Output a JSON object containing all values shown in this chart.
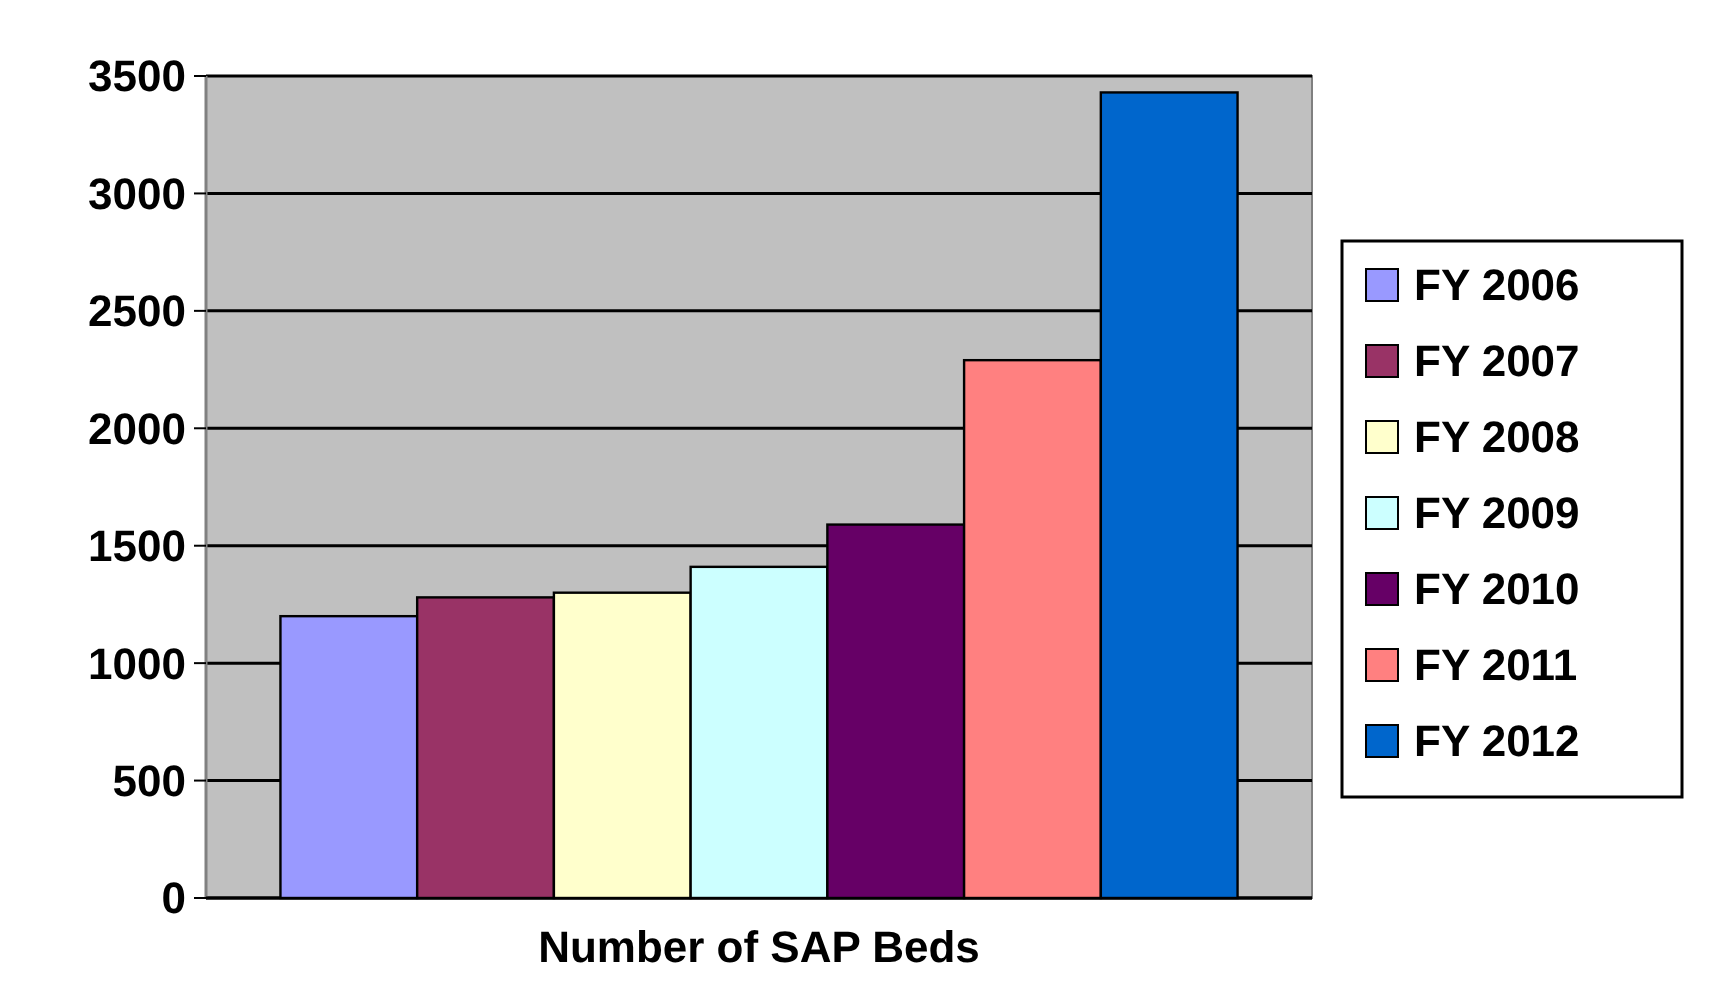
{
  "chart_data": {
    "type": "bar",
    "categories": [
      "Number of SAP Beds"
    ],
    "series": [
      {
        "name": "FY 2006",
        "color": "#9999ff",
        "values": [
          1200
        ]
      },
      {
        "name": "FY 2007",
        "color": "#993366",
        "values": [
          1280
        ]
      },
      {
        "name": "FY 2008",
        "color": "#ffffcc",
        "values": [
          1300
        ]
      },
      {
        "name": "FY 2009",
        "color": "#ccffff",
        "values": [
          1410
        ]
      },
      {
        "name": "FY 2010",
        "color": "#660066",
        "values": [
          1590
        ]
      },
      {
        "name": "FY 2011",
        "color": "#ff8080",
        "values": [
          2290
        ]
      },
      {
        "name": "FY 2012",
        "color": "#0066cc",
        "values": [
          3430
        ]
      }
    ],
    "ylim": [
      0,
      3500
    ],
    "yticks": [
      0,
      500,
      1000,
      1500,
      2000,
      2500,
      3000,
      3500
    ],
    "grid": "y",
    "legend": "right"
  }
}
